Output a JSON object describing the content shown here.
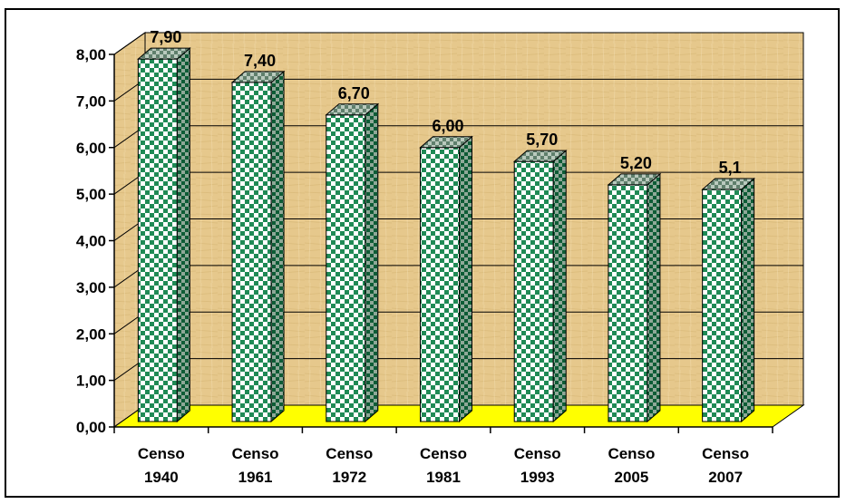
{
  "chart_data": {
    "type": "bar",
    "title": "",
    "categories": [
      [
        "Censo",
        "1940"
      ],
      [
        "Censo",
        "1961"
      ],
      [
        "Censo",
        "1972"
      ],
      [
        "Censo",
        "1981"
      ],
      [
        "Censo",
        "1993"
      ],
      [
        "Censo",
        "2005"
      ],
      [
        "Censo",
        "2007"
      ]
    ],
    "values": [
      7.9,
      7.4,
      6.7,
      6.0,
      5.7,
      5.2,
      5.1
    ],
    "data_labels": [
      "7,90",
      "7,40",
      "6,70",
      "6,00",
      "5,70",
      "5,20",
      "5,1"
    ],
    "ylim": [
      0,
      8
    ],
    "yticks": [
      "0,00",
      "1,00",
      "2,00",
      "3,00",
      "4,00",
      "5,00",
      "6,00",
      "7,00",
      "8,00"
    ],
    "grid": true,
    "legend": "none",
    "colors": {
      "bar_face": "#1f8a55",
      "bar_light": "#ffffff",
      "bar_side": "#0e5c36",
      "bar_top": "#6f8f7a",
      "wall": "#e8c98a",
      "floor": "#ffff00"
    }
  },
  "header": {
    "title_text": ""
  }
}
